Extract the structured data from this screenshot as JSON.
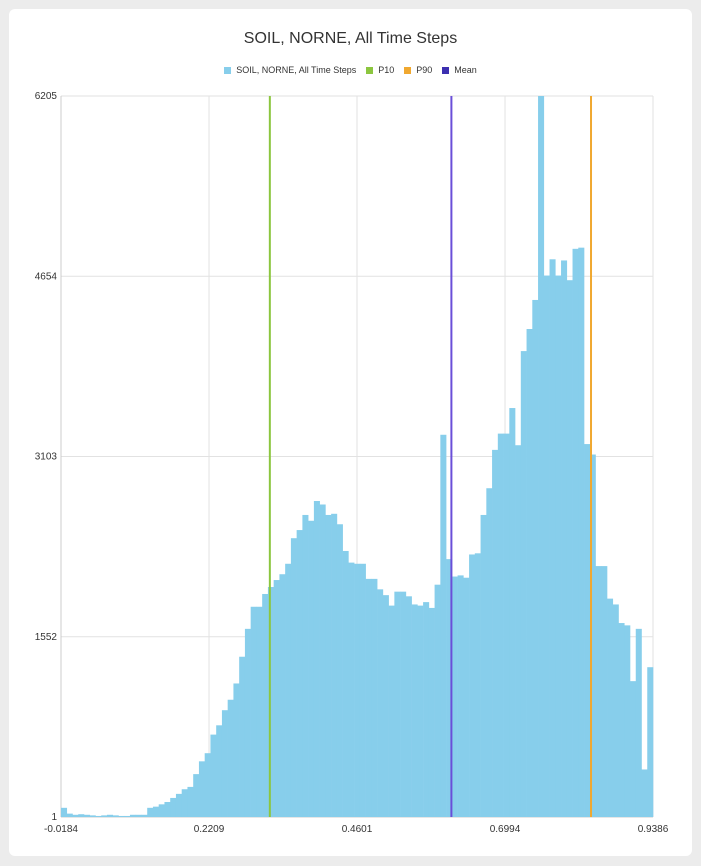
{
  "chart_data": {
    "type": "bar",
    "title": "SOIL, NORNE, All Time Steps",
    "xlabel": "",
    "ylabel": "",
    "xlim": [
      -0.0184,
      0.9386
    ],
    "ylim": [
      1,
      6205
    ],
    "x_ticks": [
      "-0.0184",
      "0.2209",
      "0.4601",
      "0.6994",
      "0.9386"
    ],
    "y_ticks": [
      "1",
      "1552",
      "3103",
      "4654",
      "6205"
    ],
    "grid": true,
    "legend_position": "top",
    "series": [
      {
        "name": "SOIL, NORNE, All Time Steps",
        "color": "#87ceeb",
        "values": [
          80,
          30,
          20,
          25,
          20,
          15,
          10,
          15,
          20,
          15,
          10,
          10,
          20,
          20,
          20,
          80,
          90,
          110,
          130,
          165,
          200,
          240,
          260,
          370,
          480,
          550,
          710,
          790,
          920,
          1010,
          1150,
          1380,
          1620,
          1810,
          1810,
          1920,
          1980,
          2040,
          2090,
          2180,
          2400,
          2470,
          2600,
          2550,
          2720,
          2690,
          2600,
          2610,
          2520,
          2290,
          2190,
          2180,
          2180,
          2050,
          2050,
          1960,
          1910,
          1820,
          1940,
          1940,
          1900,
          1830,
          1820,
          1850,
          1800,
          2000,
          3290,
          2220,
          2070,
          2080,
          2060,
          2260,
          2270,
          2600,
          2830,
          3160,
          3300,
          3300,
          3520,
          3200,
          4010,
          4200,
          4450,
          6205,
          4660,
          4800,
          4660,
          4790,
          4620,
          4890,
          4900,
          3210,
          3120,
          2160,
          2160,
          1880,
          1830,
          1670,
          1650,
          1170,
          1620,
          410,
          1290
        ]
      }
    ],
    "reference_lines": [
      {
        "name": "P10",
        "color": "#8cc63f",
        "x": 0.3192
      },
      {
        "name": "P90",
        "color": "#f0a830",
        "x": 0.8384
      },
      {
        "name": "Mean",
        "color": "#6a4fd8",
        "x": 0.6127
      }
    ]
  }
}
